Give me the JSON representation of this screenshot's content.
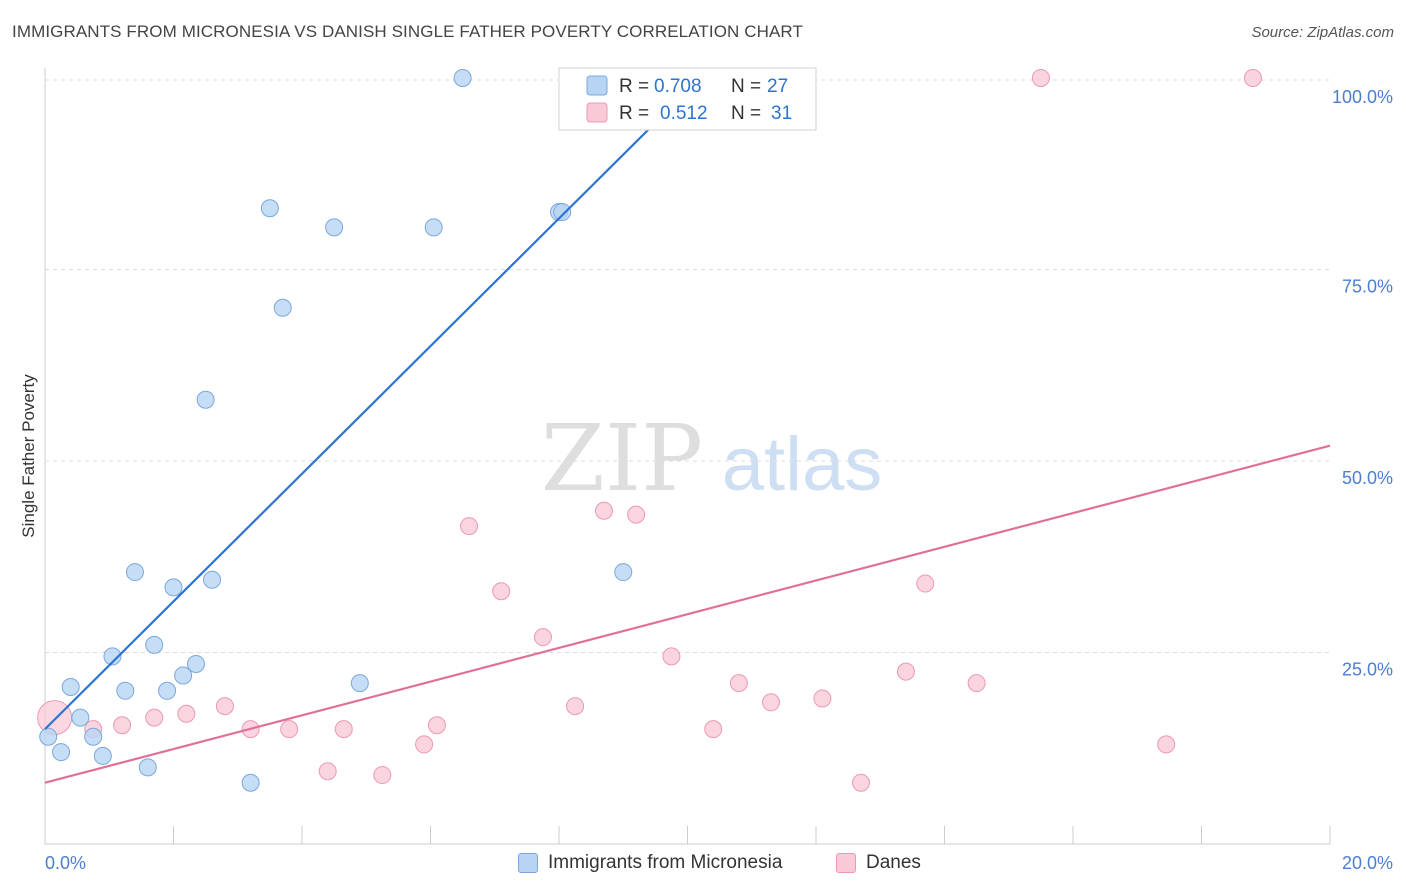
{
  "title": "IMMIGRANTS FROM MICRONESIA VS DANISH SINGLE FATHER POVERTY CORRELATION CHART",
  "source": "Source: ZipAtlas.com",
  "watermark": {
    "zip": "ZIP",
    "atlas": "atlas"
  },
  "legend_top": {
    "rows": [
      {
        "r_label": "R =",
        "r_value": "0.708",
        "n_label": "N =",
        "n_value": "27"
      },
      {
        "r_label": "R =",
        "r_value": "0.512",
        "n_label": "N =",
        "n_value": "31"
      }
    ]
  },
  "colors": {
    "blue_fill": "#b8d4f4",
    "blue_stroke": "#7aa8dc",
    "blue_line": "#2d74d0",
    "pink_fill": "#f9c9d7",
    "pink_stroke": "#eb9ab3",
    "pink_line": "#e0709a",
    "tick_text": "#4a7fd0",
    "grid": "#dcdcdc"
  },
  "chart_data": {
    "type": "scatter",
    "title": "IMMIGRANTS FROM MICRONESIA VS DANISH SINGLE FATHER POVERTY CORRELATION CHART",
    "xlabel": "",
    "ylabel": "Single Father Poverty",
    "xlim": [
      0,
      20
    ],
    "ylim": [
      0,
      100
    ],
    "x_tick_labels": [
      "0.0%",
      "20.0%"
    ],
    "y_ticks": [
      25,
      50,
      75,
      100
    ],
    "y_tick_labels": [
      "25.0%",
      "50.0%",
      "75.0%",
      "100.0%"
    ],
    "grid": true,
    "legend_position": "top-center",
    "series": [
      {
        "name": "Immigrants from Micronesia",
        "color": "#b8d4f4",
        "r": "0.708",
        "n": "27",
        "points": [
          [
            0.05,
            14.0
          ],
          [
            0.25,
            12.0
          ],
          [
            0.4,
            20.5
          ],
          [
            0.55,
            16.5
          ],
          [
            0.75,
            14.0
          ],
          [
            0.9,
            11.5
          ],
          [
            1.05,
            24.5
          ],
          [
            1.25,
            20.0
          ],
          [
            1.4,
            35.5
          ],
          [
            1.6,
            10.0
          ],
          [
            1.7,
            26.0
          ],
          [
            1.9,
            20.0
          ],
          [
            2.0,
            33.5
          ],
          [
            2.15,
            22.0
          ],
          [
            2.35,
            23.5
          ],
          [
            2.6,
            34.5
          ],
          [
            2.5,
            58.0
          ],
          [
            3.2,
            8.0
          ],
          [
            3.5,
            83.0
          ],
          [
            3.7,
            70.0
          ],
          [
            4.5,
            80.5
          ],
          [
            4.9,
            21.0
          ],
          [
            6.05,
            80.5
          ],
          [
            6.5,
            100.0
          ],
          [
            8.0,
            82.5
          ],
          [
            8.05,
            82.5
          ],
          [
            9.0,
            35.5
          ]
        ],
        "trend": {
          "x": [
            0.0,
            10.2
          ],
          "y": [
            15.0,
            100.0
          ]
        }
      },
      {
        "name": "Danes",
        "color": "#f9c9d7",
        "r": "0.512",
        "n": "31",
        "points": [
          [
            0.15,
            16.5
          ],
          [
            0.75,
            15.0
          ],
          [
            1.2,
            15.5
          ],
          [
            1.7,
            16.5
          ],
          [
            2.2,
            17.0
          ],
          [
            2.8,
            18.0
          ],
          [
            3.2,
            15.0
          ],
          [
            3.8,
            15.0
          ],
          [
            4.4,
            9.5
          ],
          [
            4.65,
            15.0
          ],
          [
            5.25,
            9.0
          ],
          [
            5.9,
            13.0
          ],
          [
            6.1,
            15.5
          ],
          [
            6.6,
            41.5
          ],
          [
            7.1,
            33.0
          ],
          [
            7.75,
            27.0
          ],
          [
            8.25,
            18.0
          ],
          [
            8.7,
            43.5
          ],
          [
            9.2,
            43.0
          ],
          [
            9.75,
            24.5
          ],
          [
            10.4,
            15.0
          ],
          [
            10.8,
            21.0
          ],
          [
            11.3,
            18.5
          ],
          [
            12.1,
            19.0
          ],
          [
            12.7,
            8.0
          ],
          [
            13.4,
            22.5
          ],
          [
            13.7,
            34.0
          ],
          [
            14.5,
            21.0
          ],
          [
            15.5,
            100.0
          ],
          [
            17.45,
            13.0
          ],
          [
            18.8,
            100.0
          ]
        ],
        "trend": {
          "x": [
            0.0,
            20.0
          ],
          "y": [
            8.0,
            52.0
          ]
        }
      }
    ]
  },
  "bottom_legend": [
    {
      "label": "Immigrants from Micronesia"
    },
    {
      "label": "Danes"
    }
  ]
}
